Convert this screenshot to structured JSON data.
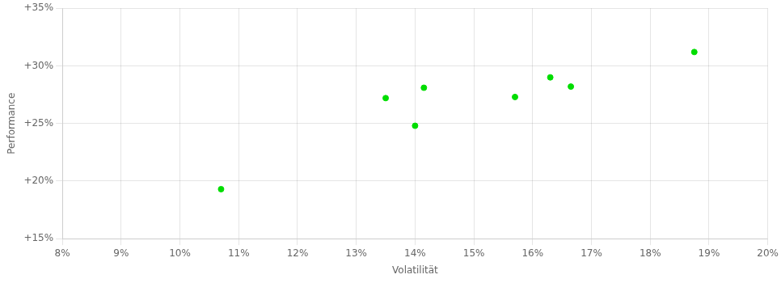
{
  "chart_data": {
    "type": "scatter",
    "xlabel": "Volatilität",
    "ylabel": "Performance",
    "x": [
      10.7,
      13.5,
      14.0,
      14.15,
      15.7,
      16.3,
      16.65,
      18.75
    ],
    "values": [
      19.3,
      27.2,
      24.8,
      28.1,
      27.3,
      29.0,
      28.2,
      31.2
    ],
    "color": "#00dd00",
    "xlim": [
      8,
      20
    ],
    "ylim": [
      15,
      35
    ],
    "xticks": [
      {
        "value": 8,
        "label": "8%"
      },
      {
        "value": 9,
        "label": "9%"
      },
      {
        "value": 10,
        "label": "10%"
      },
      {
        "value": 11,
        "label": "11%"
      },
      {
        "value": 12,
        "label": "12%"
      },
      {
        "value": 13,
        "label": "13%"
      },
      {
        "value": 14,
        "label": "14%"
      },
      {
        "value": 15,
        "label": "15%"
      },
      {
        "value": 16,
        "label": "16%"
      },
      {
        "value": 17,
        "label": "17%"
      },
      {
        "value": 18,
        "label": "18%"
      },
      {
        "value": 19,
        "label": "19%"
      },
      {
        "value": 20,
        "label": "20%"
      }
    ],
    "yticks": [
      {
        "value": 15,
        "label": "+15%"
      },
      {
        "value": 20,
        "label": "+20%"
      },
      {
        "value": 25,
        "label": "+25%"
      },
      {
        "value": 30,
        "label": "+30%"
      },
      {
        "value": 35,
        "label": "+35%"
      }
    ],
    "grid": true
  }
}
